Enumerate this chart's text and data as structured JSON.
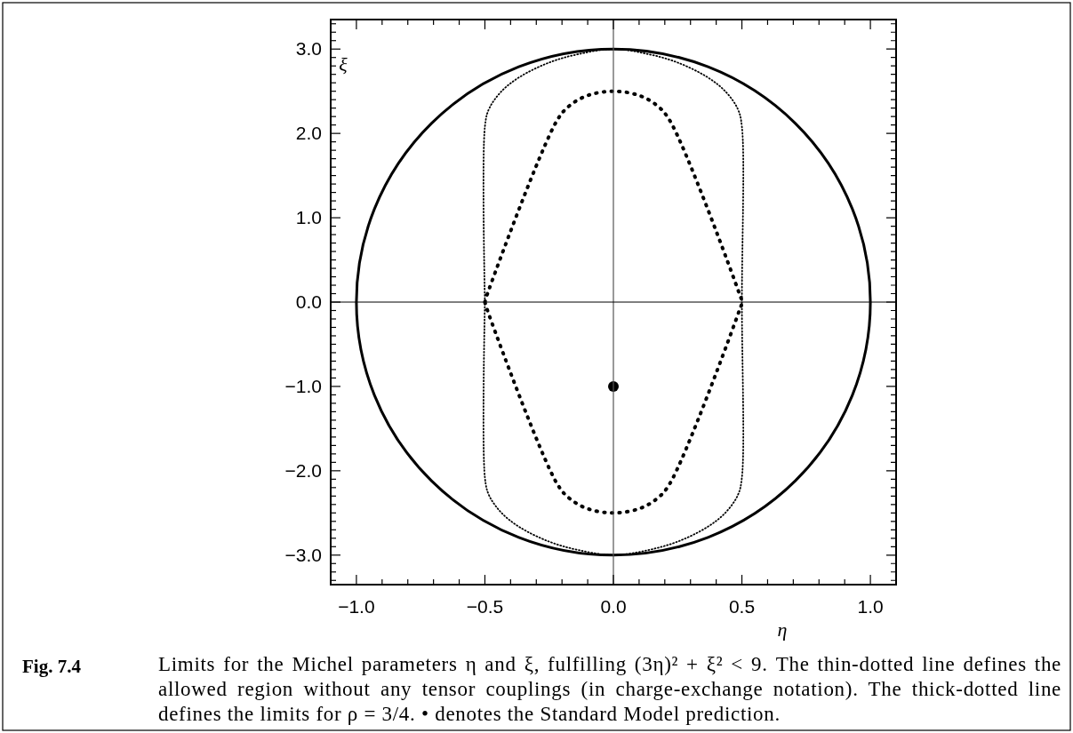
{
  "chart_data": {
    "type": "scatter",
    "xlabel": "η",
    "ylabel": "ξ",
    "xlim": [
      -1.1,
      1.1
    ],
    "ylim": [
      -3.35,
      3.35
    ],
    "xticks": [
      {
        "value": -1,
        "label": "−1.0"
      },
      {
        "value": -0.9,
        "label": null
      },
      {
        "value": -0.8,
        "label": null
      },
      {
        "value": -0.7,
        "label": null
      },
      {
        "value": -0.6,
        "label": null
      },
      {
        "value": -0.5,
        "label": "−0.5"
      },
      {
        "value": -0.4,
        "label": null
      },
      {
        "value": -0.3,
        "label": null
      },
      {
        "value": -0.2,
        "label": null
      },
      {
        "value": -0.1,
        "label": null
      },
      {
        "value": 0,
        "label": "0.0"
      },
      {
        "value": 0.1,
        "label": null
      },
      {
        "value": 0.2,
        "label": null
      },
      {
        "value": 0.3,
        "label": null
      },
      {
        "value": 0.4,
        "label": null
      },
      {
        "value": 0.5,
        "label": "0.5"
      },
      {
        "value": 0.6,
        "label": null
      },
      {
        "value": 0.7,
        "label": null
      },
      {
        "value": 0.8,
        "label": null
      },
      {
        "value": 0.9,
        "label": null
      },
      {
        "value": 1,
        "label": "1.0"
      }
    ],
    "yticks": [
      {
        "value": -3.3,
        "label": null
      },
      {
        "value": -3.2,
        "label": null
      },
      {
        "value": -3.1,
        "label": null
      },
      {
        "value": -3,
        "label": "−3.0"
      },
      {
        "value": -2.9,
        "label": null
      },
      {
        "value": -2.8,
        "label": null
      },
      {
        "value": -2.7,
        "label": null
      },
      {
        "value": -2.6,
        "label": null
      },
      {
        "value": -2.5,
        "label": null
      },
      {
        "value": -2.4,
        "label": null
      },
      {
        "value": -2.3,
        "label": null
      },
      {
        "value": -2.2,
        "label": null
      },
      {
        "value": -2.1,
        "label": null
      },
      {
        "value": -2,
        "label": "−2.0"
      },
      {
        "value": -1.9,
        "label": null
      },
      {
        "value": -1.8,
        "label": null
      },
      {
        "value": -1.7,
        "label": null
      },
      {
        "value": -1.6,
        "label": null
      },
      {
        "value": -1.5,
        "label": null
      },
      {
        "value": -1.4,
        "label": null
      },
      {
        "value": -1.3,
        "label": null
      },
      {
        "value": -1.2,
        "label": null
      },
      {
        "value": -1.1,
        "label": null
      },
      {
        "value": -1,
        "label": "−1.0"
      },
      {
        "value": -0.9,
        "label": null
      },
      {
        "value": -0.8,
        "label": null
      },
      {
        "value": -0.7,
        "label": null
      },
      {
        "value": -0.6,
        "label": null
      },
      {
        "value": -0.5,
        "label": null
      },
      {
        "value": -0.4,
        "label": null
      },
      {
        "value": -0.3,
        "label": null
      },
      {
        "value": -0.2,
        "label": null
      },
      {
        "value": -0.1,
        "label": null
      },
      {
        "value": 0,
        "label": "0.0"
      },
      {
        "value": 0.1,
        "label": null
      },
      {
        "value": 0.2,
        "label": null
      },
      {
        "value": 0.3,
        "label": null
      },
      {
        "value": 0.4,
        "label": null
      },
      {
        "value": 0.5,
        "label": null
      },
      {
        "value": 0.6,
        "label": null
      },
      {
        "value": 0.7,
        "label": null
      },
      {
        "value": 0.8,
        "label": null
      },
      {
        "value": 0.9,
        "label": null
      },
      {
        "value": 1,
        "label": "1.0"
      },
      {
        "value": 1.1,
        "label": null
      },
      {
        "value": 1.2,
        "label": null
      },
      {
        "value": 1.3,
        "label": null
      },
      {
        "value": 1.4,
        "label": null
      },
      {
        "value": 1.5,
        "label": null
      },
      {
        "value": 1.6,
        "label": null
      },
      {
        "value": 1.7,
        "label": null
      },
      {
        "value": 1.8,
        "label": null
      },
      {
        "value": 1.9,
        "label": null
      },
      {
        "value": 2,
        "label": "2.0"
      },
      {
        "value": 2.1,
        "label": null
      },
      {
        "value": 2.2,
        "label": null
      },
      {
        "value": 2.3,
        "label": null
      },
      {
        "value": 2.4,
        "label": null
      },
      {
        "value": 2.5,
        "label": null
      },
      {
        "value": 2.6,
        "label": null
      },
      {
        "value": 2.7,
        "label": null
      },
      {
        "value": 2.8,
        "label": null
      },
      {
        "value": 2.9,
        "label": null
      },
      {
        "value": 3,
        "label": "3.0"
      },
      {
        "value": 3.1,
        "label": null
      },
      {
        "value": 3.2,
        "label": null
      },
      {
        "value": 3.3,
        "label": null
      }
    ],
    "ref_lines": [
      {
        "axis": "x",
        "value": 0,
        "color": "#555555"
      },
      {
        "axis": "y",
        "value": 0,
        "color": "#000000"
      }
    ],
    "series": [
      {
        "color": "#000000",
        "marker": "circle",
        "x": [
          0
        ],
        "values": [
          -1
        ]
      }
    ],
    "annotations": [
      "Fig. 7.4",
      "Limits for the Michel parameters η and ξ, fulfilling (3η)² + ξ² < 9.  The thin-dotted line defines the allowed region without any tensor couplings (in charge-exchange notation).  The thick-dotted line defines the limits for ρ = 3/4.  • denotes the Standard Model prediction."
    ]
  }
}
